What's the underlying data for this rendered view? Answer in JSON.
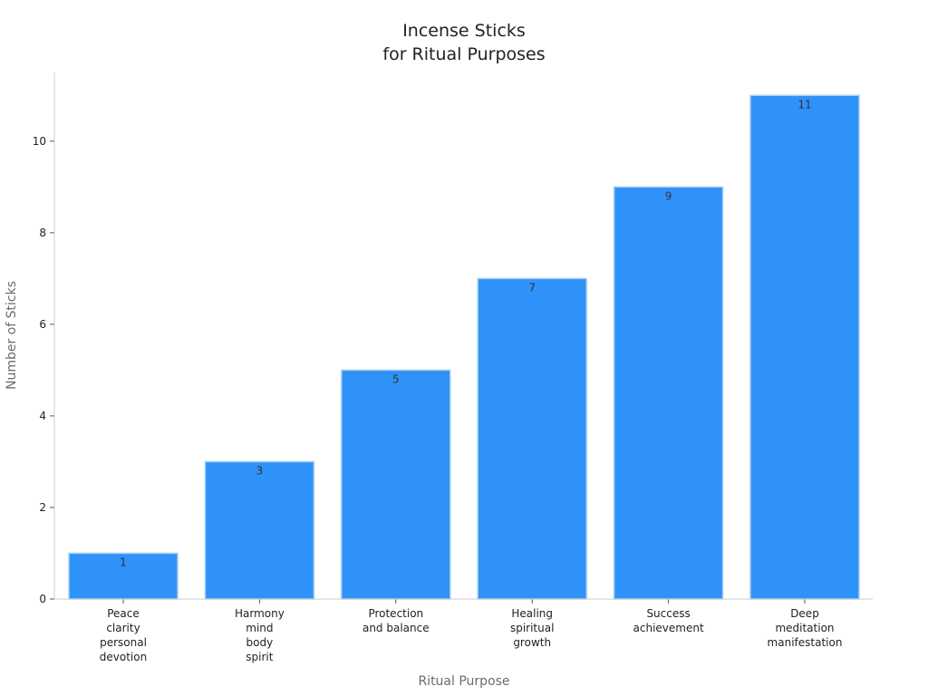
{
  "chart_data": {
    "type": "bar",
    "title": [
      "Incense Sticks",
      "for Ritual Purposes"
    ],
    "xlabel": "Ritual Purpose",
    "ylabel": "Number of Sticks",
    "categories": [
      [
        "Peace",
        "clarity",
        "personal",
        "devotion"
      ],
      [
        "Harmony",
        "mind",
        "body",
        "spirit"
      ],
      [
        "Protection",
        "and balance"
      ],
      [
        "Healing",
        "spiritual",
        "growth"
      ],
      [
        "Success",
        "achievement"
      ],
      [
        "Deep",
        "meditation",
        "manifestation"
      ]
    ],
    "values": [
      1,
      3,
      5,
      7,
      9,
      11
    ],
    "data_labels": [
      "1",
      "3",
      "5",
      "7",
      "9",
      "11"
    ],
    "ylim": [
      0,
      11.5
    ],
    "yticks": [
      0,
      2,
      4,
      6,
      8,
      10
    ],
    "ytick_labels": [
      "0",
      "2",
      "4",
      "6",
      "8",
      "10"
    ],
    "grid": false,
    "colors": {
      "bar": "#2f92f8",
      "bar_edge": "#a9cef5",
      "axis": "#cccccc"
    }
  }
}
